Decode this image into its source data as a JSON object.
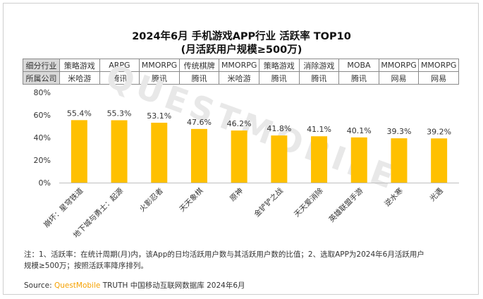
{
  "title_line1": "2024年6月 手机游戏APP行业 活跃率 TOP10",
  "title_line2": "(月活跃用户规模≥500万)",
  "info_table": {
    "row1_header": "细分行业",
    "row2_header": "所属公司",
    "industries": [
      "策略游戏",
      "ARPG",
      "MMORPG",
      "传统棋牌",
      "MMORPG",
      "策略游戏",
      "消除游戏",
      "MOBA",
      "MMORPG",
      "MMORPG"
    ],
    "companies": [
      "米哈游",
      "腾讯",
      "腾讯",
      "腾讯",
      "米哈游",
      "腾讯",
      "腾讯",
      "腾讯",
      "网易",
      "网易"
    ]
  },
  "chart_data": {
    "type": "bar",
    "title": "2024年6月 手机游戏APP行业 活跃率 TOP10",
    "subtitle": "(月活跃用户规模≥500万)",
    "categories": [
      "崩坏：星穹铁道",
      "地下城与勇士：起源",
      "火影忍者",
      "天天象棋",
      "原神",
      "金铲铲之战",
      "天天爱消除",
      "英雄联盟手游",
      "逆水寒",
      "光遇"
    ],
    "values": [
      55.4,
      55.3,
      53.1,
      47.6,
      46.2,
      41.8,
      41.1,
      40.1,
      39.3,
      39.2
    ],
    "value_labels": [
      "55.4%",
      "55.3%",
      "53.1%",
      "47.6%",
      "46.2%",
      "41.8%",
      "41.1%",
      "40.1%",
      "39.3%",
      "39.2%"
    ],
    "y_ticks": [
      "0%",
      "20%",
      "40%",
      "60%",
      "80%"
    ],
    "ylim": [
      0,
      80
    ],
    "bar_color": "#ffc000",
    "grid": false,
    "legend": "none"
  },
  "watermark": "QUESTMOBILE",
  "note_line1": "注：1、活跃率：在统计周期(月)内，该App的日均活跃用户数与其活跃用户数的比值；2、选取APP为2024年6月活跃用户",
  "note_line2": "规模≥500万；按照活跃率降序排列。",
  "source": {
    "label": "Source:",
    "brand": "QuestMobile",
    "text": "TRUTH 中国移动互联网数据库 2024年6月"
  }
}
